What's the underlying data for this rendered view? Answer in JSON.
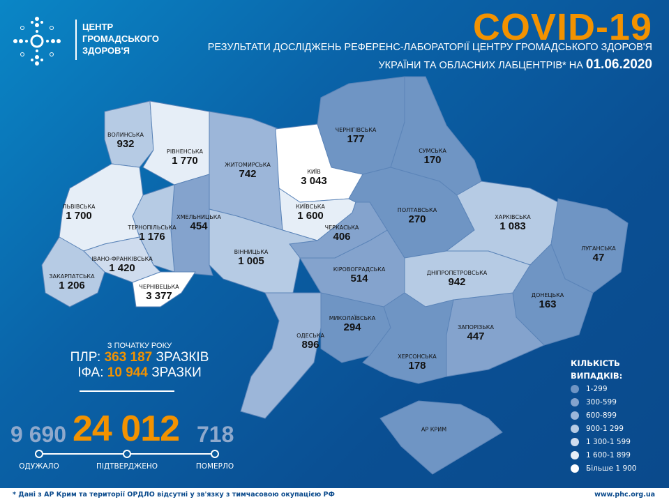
{
  "header": {
    "logo_lines": [
      "ЦЕНТР",
      "ГРОМАДСЬКОГО",
      "ЗДОРОВ'Я"
    ],
    "title": "COVID-19",
    "subtitle_line1": "РЕЗУЛЬТАТИ ДОСЛІДЖЕНЬ РЕФЕРЕНС-ЛАБОРАТОРІЇ ЦЕНТРУ ГРОМАДСЬКОГО ЗДОРОВ'Я",
    "subtitle_line2": "УКРАЇНИ ТА ОБЛАСНИХ ЛАБЦЕНТРІВ* НА",
    "date": "01.06.2020"
  },
  "tests": {
    "header": "З ПОЧАТКУ РОКУ",
    "pcr_label": "ПЛР:",
    "pcr_value": "363 187",
    "pcr_unit": "ЗРАЗКІВ",
    "ifa_label": "ІФА:",
    "ifa_value": "10 944",
    "ifa_unit": "ЗРАЗКИ"
  },
  "totals": {
    "recovered": "9 690",
    "confirmed": "24 012",
    "deaths": "718",
    "recovered_label": "ОДУЖАЛО",
    "confirmed_label": "ПІДТВЕРДЖЕНО",
    "deaths_label": "ПОМЕРЛО"
  },
  "legend": {
    "title_line1": "КІЛЬКІСТЬ",
    "title_line2": "ВИПАДКІВ:",
    "items": [
      {
        "label": "1-299",
        "color": "#6f95c4"
      },
      {
        "label": "300-599",
        "color": "#84a3cd"
      },
      {
        "label": "600-899",
        "color": "#9cb6d9"
      },
      {
        "label": "900-1 299",
        "color": "#b6cbe4"
      },
      {
        "label": "1 300-1 599",
        "color": "#cfdcee"
      },
      {
        "label": "1 600-1 899",
        "color": "#e6eef7"
      },
      {
        "label": "Більше 1 900",
        "color": "#ffffff"
      }
    ]
  },
  "regions": [
    {
      "id": "volyn",
      "name": "ВОЛИНСЬКА",
      "value": "932",
      "bucket": 3
    },
    {
      "id": "rivne",
      "name": "РІВНЕНСЬКА",
      "value": "1 770",
      "bucket": 5
    },
    {
      "id": "zhytomyr",
      "name": "ЖИТОМИРСЬКА",
      "value": "742",
      "bucket": 2
    },
    {
      "id": "kyiv-city",
      "name": "КИЇВ",
      "value": "3 043",
      "bucket": 6
    },
    {
      "id": "kyiv",
      "name": "КИЇВСЬКА",
      "value": "1 600",
      "bucket": 5
    },
    {
      "id": "chernihiv",
      "name": "ЧЕРНІГІВСЬКА",
      "value": "177",
      "bucket": 0
    },
    {
      "id": "sumy",
      "name": "СУМСЬКА",
      "value": "170",
      "bucket": 0
    },
    {
      "id": "poltava",
      "name": "ПОЛТАВСЬКА",
      "value": "270",
      "bucket": 0
    },
    {
      "id": "kharkiv",
      "name": "ХАРКІВСЬКА",
      "value": "1 083",
      "bucket": 3
    },
    {
      "id": "luhansk",
      "name": "ЛУГАНСЬКА",
      "value": "47",
      "bucket": 0
    },
    {
      "id": "donetsk",
      "name": "ДОНЕЦЬКА",
      "value": "163",
      "bucket": 0
    },
    {
      "id": "zaporizhzhia",
      "name": "ЗАПОРІЗЬКА",
      "value": "447",
      "bucket": 1
    },
    {
      "id": "dnipro",
      "name": "ДНІПРОПЕТРОВСЬКА",
      "value": "942",
      "bucket": 3
    },
    {
      "id": "kirovohrad",
      "name": "КІРОВОГРАДСЬКА",
      "value": "514",
      "bucket": 1
    },
    {
      "id": "cherkasy",
      "name": "ЧЕРКАСЬКА",
      "value": "406",
      "bucket": 1
    },
    {
      "id": "vinnytsia",
      "name": "ВІННИЦЬКА",
      "value": "1 005",
      "bucket": 3
    },
    {
      "id": "khmelnytsky",
      "name": "ХМЕЛЬНИЦЬКА",
      "value": "454",
      "bucket": 1
    },
    {
      "id": "ternopil",
      "name": "ТЕРНОПІЛЬСЬКА",
      "value": "1 176",
      "bucket": 3
    },
    {
      "id": "lviv",
      "name": "ЛЬВІВСЬКА",
      "value": "1 700",
      "bucket": 5
    },
    {
      "id": "zakarpattia",
      "name": "ЗАКАРПАТСЬКА",
      "value": "1 206",
      "bucket": 3
    },
    {
      "id": "ivano-frankivsk",
      "name": "ІВАНО-ФРАНКІВСЬКА",
      "value": "1 420",
      "bucket": 4
    },
    {
      "id": "chernivtsi",
      "name": "ЧЕРНІВЕЦЬКА",
      "value": "3 377",
      "bucket": 6
    },
    {
      "id": "odesa",
      "name": "ОДЕСЬКА",
      "value": "896",
      "bucket": 2
    },
    {
      "id": "mykolaiv",
      "name": "МИКОЛАЇВСЬКА",
      "value": "294",
      "bucket": 0
    },
    {
      "id": "kherson",
      "name": "ХЕРСОНСЬКА",
      "value": "178",
      "bucket": 0
    },
    {
      "id": "crimea",
      "name": "АР КРИМ",
      "value": "",
      "bucket": 0
    }
  ],
  "footer": {
    "note": "* Дані з АР Крим та території ОРДЛО відсутні у зв'язку з тимчасовою окупацією РФ",
    "website": "www.phc.org.ua"
  }
}
